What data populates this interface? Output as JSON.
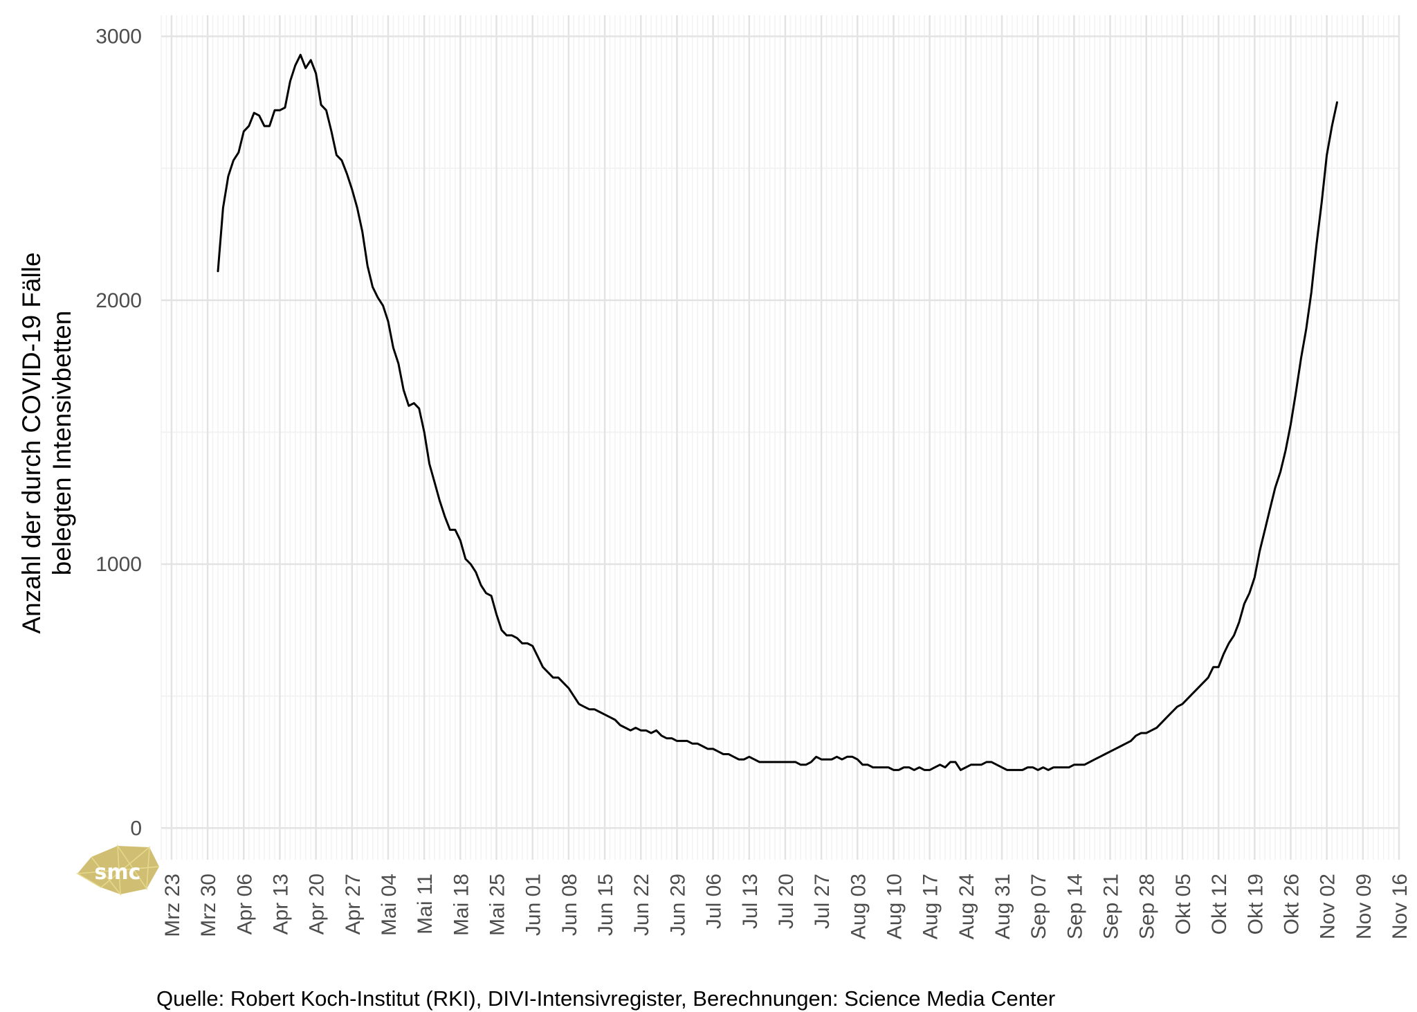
{
  "chart_data": {
    "type": "line",
    "title": "",
    "ylabel_lines": [
      "Anzahl der durch COVID-19 Fälle",
      "belegten Intensivbetten"
    ],
    "xlabel": "",
    "caption": "Quelle: Robert Koch-Institut (RKI), DIVI-Intensivregister, Berechnungen: Science Media Center",
    "logo_text": "smc",
    "x_range": [
      "2020-03-21",
      "2020-11-16"
    ],
    "ylim": [
      -120,
      3080
    ],
    "y_ticks": [
      0,
      1000,
      2000,
      3000
    ],
    "x_ticks": [
      {
        "date": "2020-03-23",
        "label": "Mrz 23"
      },
      {
        "date": "2020-03-30",
        "label": "Mrz 30"
      },
      {
        "date": "2020-04-06",
        "label": "Apr 06"
      },
      {
        "date": "2020-04-13",
        "label": "Apr 13"
      },
      {
        "date": "2020-04-20",
        "label": "Apr 20"
      },
      {
        "date": "2020-04-27",
        "label": "Apr 27"
      },
      {
        "date": "2020-05-04",
        "label": "Mai 04"
      },
      {
        "date": "2020-05-11",
        "label": "Mai 11"
      },
      {
        "date": "2020-05-18",
        "label": "Mai 18"
      },
      {
        "date": "2020-05-25",
        "label": "Mai 25"
      },
      {
        "date": "2020-06-01",
        "label": "Jun 01"
      },
      {
        "date": "2020-06-08",
        "label": "Jun 08"
      },
      {
        "date": "2020-06-15",
        "label": "Jun 15"
      },
      {
        "date": "2020-06-22",
        "label": "Jun 22"
      },
      {
        "date": "2020-06-29",
        "label": "Jun 29"
      },
      {
        "date": "2020-07-06",
        "label": "Jul 06"
      },
      {
        "date": "2020-07-13",
        "label": "Jul 13"
      },
      {
        "date": "2020-07-20",
        "label": "Jul 20"
      },
      {
        "date": "2020-07-27",
        "label": "Jul 27"
      },
      {
        "date": "2020-08-03",
        "label": "Aug 03"
      },
      {
        "date": "2020-08-10",
        "label": "Aug 10"
      },
      {
        "date": "2020-08-17",
        "label": "Aug 17"
      },
      {
        "date": "2020-08-24",
        "label": "Aug 24"
      },
      {
        "date": "2020-08-31",
        "label": "Aug 31"
      },
      {
        "date": "2020-09-07",
        "label": "Sep 07"
      },
      {
        "date": "2020-09-14",
        "label": "Sep 14"
      },
      {
        "date": "2020-09-21",
        "label": "Sep 21"
      },
      {
        "date": "2020-09-28",
        "label": "Sep 28"
      },
      {
        "date": "2020-10-05",
        "label": "Okt 05"
      },
      {
        "date": "2020-10-12",
        "label": "Okt 12"
      },
      {
        "date": "2020-10-19",
        "label": "Okt 19"
      },
      {
        "date": "2020-10-26",
        "label": "Okt 26"
      },
      {
        "date": "2020-11-02",
        "label": "Nov 02"
      },
      {
        "date": "2020-11-09",
        "label": "Nov 09"
      },
      {
        "date": "2020-11-16",
        "label": "Nov 16"
      }
    ],
    "grid": true,
    "line_color": "#000000",
    "series": [
      {
        "name": "",
        "points": [
          [
            "2020-04-01",
            2110
          ],
          [
            "2020-04-02",
            2350
          ],
          [
            "2020-04-03",
            2470
          ],
          [
            "2020-04-04",
            2530
          ],
          [
            "2020-04-05",
            2560
          ],
          [
            "2020-04-06",
            2640
          ],
          [
            "2020-04-07",
            2660
          ],
          [
            "2020-04-08",
            2710
          ],
          [
            "2020-04-09",
            2700
          ],
          [
            "2020-04-10",
            2660
          ],
          [
            "2020-04-11",
            2660
          ],
          [
            "2020-04-12",
            2720
          ],
          [
            "2020-04-13",
            2720
          ],
          [
            "2020-04-14",
            2730
          ],
          [
            "2020-04-15",
            2830
          ],
          [
            "2020-04-16",
            2890
          ],
          [
            "2020-04-17",
            2930
          ],
          [
            "2020-04-18",
            2880
          ],
          [
            "2020-04-19",
            2910
          ],
          [
            "2020-04-20",
            2860
          ],
          [
            "2020-04-21",
            2740
          ],
          [
            "2020-04-22",
            2720
          ],
          [
            "2020-04-23",
            2640
          ],
          [
            "2020-04-24",
            2550
          ],
          [
            "2020-04-25",
            2530
          ],
          [
            "2020-04-26",
            2480
          ],
          [
            "2020-04-27",
            2420
          ],
          [
            "2020-04-28",
            2350
          ],
          [
            "2020-04-29",
            2260
          ],
          [
            "2020-04-30",
            2130
          ],
          [
            "2020-05-01",
            2050
          ],
          [
            "2020-05-02",
            2010
          ],
          [
            "2020-05-03",
            1980
          ],
          [
            "2020-05-04",
            1920
          ],
          [
            "2020-05-05",
            1820
          ],
          [
            "2020-05-06",
            1760
          ],
          [
            "2020-05-07",
            1660
          ],
          [
            "2020-05-08",
            1600
          ],
          [
            "2020-05-09",
            1610
          ],
          [
            "2020-05-10",
            1590
          ],
          [
            "2020-05-11",
            1500
          ],
          [
            "2020-05-12",
            1380
          ],
          [
            "2020-05-13",
            1310
          ],
          [
            "2020-05-14",
            1240
          ],
          [
            "2020-05-15",
            1180
          ],
          [
            "2020-05-16",
            1130
          ],
          [
            "2020-05-17",
            1130
          ],
          [
            "2020-05-18",
            1090
          ],
          [
            "2020-05-19",
            1020
          ],
          [
            "2020-05-20",
            1000
          ],
          [
            "2020-05-21",
            970
          ],
          [
            "2020-05-22",
            920
          ],
          [
            "2020-05-23",
            890
          ],
          [
            "2020-05-24",
            880
          ],
          [
            "2020-05-25",
            810
          ],
          [
            "2020-05-26",
            750
          ],
          [
            "2020-05-27",
            730
          ],
          [
            "2020-05-28",
            730
          ],
          [
            "2020-05-29",
            720
          ],
          [
            "2020-05-30",
            700
          ],
          [
            "2020-05-31",
            700
          ],
          [
            "2020-06-01",
            690
          ],
          [
            "2020-06-02",
            650
          ],
          [
            "2020-06-03",
            610
          ],
          [
            "2020-06-04",
            590
          ],
          [
            "2020-06-05",
            570
          ],
          [
            "2020-06-06",
            570
          ],
          [
            "2020-06-07",
            550
          ],
          [
            "2020-06-08",
            530
          ],
          [
            "2020-06-09",
            500
          ],
          [
            "2020-06-10",
            470
          ],
          [
            "2020-06-11",
            460
          ],
          [
            "2020-06-12",
            450
          ],
          [
            "2020-06-13",
            450
          ],
          [
            "2020-06-14",
            440
          ],
          [
            "2020-06-15",
            430
          ],
          [
            "2020-06-16",
            420
          ],
          [
            "2020-06-17",
            410
          ],
          [
            "2020-06-18",
            390
          ],
          [
            "2020-06-19",
            380
          ],
          [
            "2020-06-20",
            370
          ],
          [
            "2020-06-21",
            380
          ],
          [
            "2020-06-22",
            370
          ],
          [
            "2020-06-23",
            370
          ],
          [
            "2020-06-24",
            360
          ],
          [
            "2020-06-25",
            370
          ],
          [
            "2020-06-26",
            350
          ],
          [
            "2020-06-27",
            340
          ],
          [
            "2020-06-28",
            340
          ],
          [
            "2020-06-29",
            330
          ],
          [
            "2020-06-30",
            330
          ],
          [
            "2020-07-01",
            330
          ],
          [
            "2020-07-02",
            320
          ],
          [
            "2020-07-03",
            320
          ],
          [
            "2020-07-04",
            310
          ],
          [
            "2020-07-05",
            300
          ],
          [
            "2020-07-06",
            300
          ],
          [
            "2020-07-07",
            290
          ],
          [
            "2020-07-08",
            280
          ],
          [
            "2020-07-09",
            280
          ],
          [
            "2020-07-10",
            270
          ],
          [
            "2020-07-11",
            260
          ],
          [
            "2020-07-12",
            260
          ],
          [
            "2020-07-13",
            270
          ],
          [
            "2020-07-14",
            260
          ],
          [
            "2020-07-15",
            250
          ],
          [
            "2020-07-16",
            250
          ],
          [
            "2020-07-17",
            250
          ],
          [
            "2020-07-18",
            250
          ],
          [
            "2020-07-19",
            250
          ],
          [
            "2020-07-20",
            250
          ],
          [
            "2020-07-21",
            250
          ],
          [
            "2020-07-22",
            250
          ],
          [
            "2020-07-23",
            240
          ],
          [
            "2020-07-24",
            240
          ],
          [
            "2020-07-25",
            250
          ],
          [
            "2020-07-26",
            270
          ],
          [
            "2020-07-27",
            260
          ],
          [
            "2020-07-28",
            260
          ],
          [
            "2020-07-29",
            260
          ],
          [
            "2020-07-30",
            270
          ],
          [
            "2020-07-31",
            260
          ],
          [
            "2020-08-01",
            270
          ],
          [
            "2020-08-02",
            270
          ],
          [
            "2020-08-03",
            260
          ],
          [
            "2020-08-04",
            240
          ],
          [
            "2020-08-05",
            240
          ],
          [
            "2020-08-06",
            230
          ],
          [
            "2020-08-07",
            230
          ],
          [
            "2020-08-08",
            230
          ],
          [
            "2020-08-09",
            230
          ],
          [
            "2020-08-10",
            220
          ],
          [
            "2020-08-11",
            220
          ],
          [
            "2020-08-12",
            230
          ],
          [
            "2020-08-13",
            230
          ],
          [
            "2020-08-14",
            220
          ],
          [
            "2020-08-15",
            230
          ],
          [
            "2020-08-16",
            220
          ],
          [
            "2020-08-17",
            220
          ],
          [
            "2020-08-18",
            230
          ],
          [
            "2020-08-19",
            240
          ],
          [
            "2020-08-20",
            230
          ],
          [
            "2020-08-21",
            250
          ],
          [
            "2020-08-22",
            250
          ],
          [
            "2020-08-23",
            220
          ],
          [
            "2020-08-24",
            230
          ],
          [
            "2020-08-25",
            240
          ],
          [
            "2020-08-26",
            240
          ],
          [
            "2020-08-27",
            240
          ],
          [
            "2020-08-28",
            250
          ],
          [
            "2020-08-29",
            250
          ],
          [
            "2020-08-30",
            240
          ],
          [
            "2020-08-31",
            230
          ],
          [
            "2020-09-01",
            220
          ],
          [
            "2020-09-02",
            220
          ],
          [
            "2020-09-03",
            220
          ],
          [
            "2020-09-04",
            220
          ],
          [
            "2020-09-05",
            230
          ],
          [
            "2020-09-06",
            230
          ],
          [
            "2020-09-07",
            220
          ],
          [
            "2020-09-08",
            230
          ],
          [
            "2020-09-09",
            220
          ],
          [
            "2020-09-10",
            230
          ],
          [
            "2020-09-11",
            230
          ],
          [
            "2020-09-12",
            230
          ],
          [
            "2020-09-13",
            230
          ],
          [
            "2020-09-14",
            240
          ],
          [
            "2020-09-15",
            240
          ],
          [
            "2020-09-16",
            240
          ],
          [
            "2020-09-17",
            250
          ],
          [
            "2020-09-18",
            260
          ],
          [
            "2020-09-19",
            270
          ],
          [
            "2020-09-20",
            280
          ],
          [
            "2020-09-21",
            290
          ],
          [
            "2020-09-22",
            300
          ],
          [
            "2020-09-23",
            310
          ],
          [
            "2020-09-24",
            320
          ],
          [
            "2020-09-25",
            330
          ],
          [
            "2020-09-26",
            350
          ],
          [
            "2020-09-27",
            360
          ],
          [
            "2020-09-28",
            360
          ],
          [
            "2020-09-29",
            370
          ],
          [
            "2020-09-30",
            380
          ],
          [
            "2020-10-01",
            400
          ],
          [
            "2020-10-02",
            420
          ],
          [
            "2020-10-03",
            440
          ],
          [
            "2020-10-04",
            460
          ],
          [
            "2020-10-05",
            470
          ],
          [
            "2020-10-06",
            490
          ],
          [
            "2020-10-07",
            510
          ],
          [
            "2020-10-08",
            530
          ],
          [
            "2020-10-09",
            550
          ],
          [
            "2020-10-10",
            570
          ],
          [
            "2020-10-11",
            610
          ],
          [
            "2020-10-12",
            610
          ],
          [
            "2020-10-13",
            660
          ],
          [
            "2020-10-14",
            700
          ],
          [
            "2020-10-15",
            730
          ],
          [
            "2020-10-16",
            780
          ],
          [
            "2020-10-17",
            850
          ],
          [
            "2020-10-18",
            890
          ],
          [
            "2020-10-19",
            950
          ],
          [
            "2020-10-20",
            1050
          ],
          [
            "2020-10-21",
            1130
          ],
          [
            "2020-10-22",
            1210
          ],
          [
            "2020-10-23",
            1290
          ],
          [
            "2020-10-24",
            1350
          ],
          [
            "2020-10-25",
            1430
          ],
          [
            "2020-10-26",
            1530
          ],
          [
            "2020-10-27",
            1650
          ],
          [
            "2020-10-28",
            1780
          ],
          [
            "2020-10-29",
            1890
          ],
          [
            "2020-10-30",
            2030
          ],
          [
            "2020-10-31",
            2210
          ],
          [
            "2020-11-01",
            2370
          ],
          [
            "2020-11-02",
            2550
          ],
          [
            "2020-11-03",
            2660
          ],
          [
            "2020-11-04",
            2750
          ]
        ]
      }
    ]
  }
}
